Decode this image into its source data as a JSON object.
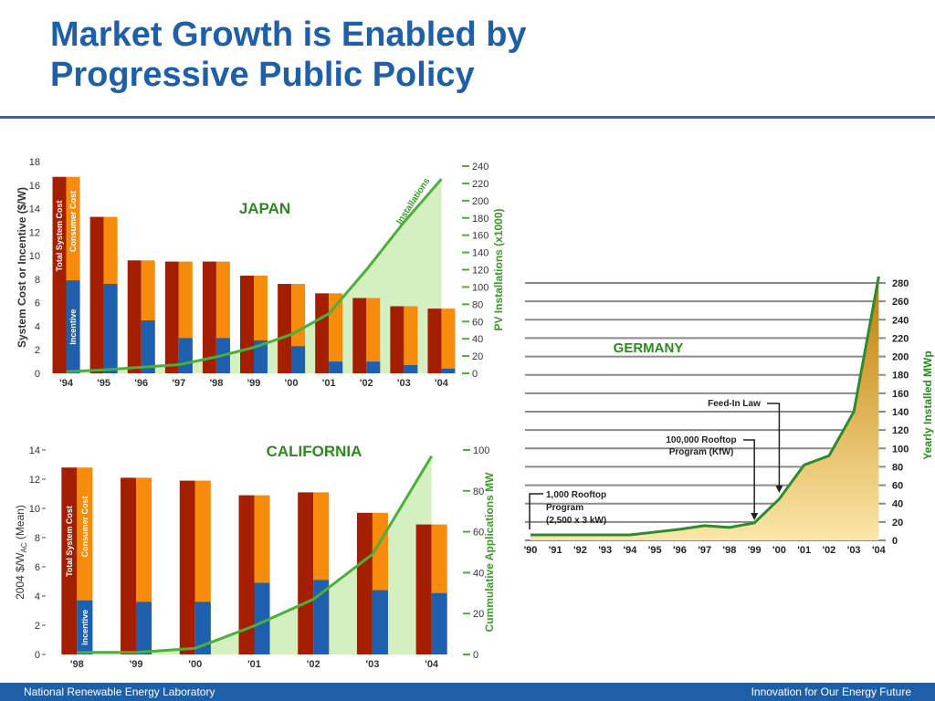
{
  "title": {
    "line1": "Market Growth is Enabled by",
    "line2": "Progressive Public Policy"
  },
  "footer": {
    "left": "National Renewable Energy Laboratory",
    "right": "Innovation for Our Energy Future"
  },
  "colors": {
    "title_blue": "#1f5fa8",
    "system_cost": "#a31f00",
    "consumer_cost": "#f78c0c",
    "incentive": "#1e5fae",
    "installations_line": "#4caf3a",
    "installations_fill": "#d4f0c0",
    "germany_line": "#2e8a2e",
    "germany_fill_top": "#c07c00",
    "germany_fill_bottom": "#fbe7a8"
  },
  "chart_data": [
    {
      "type": "bar",
      "title": "JAPAN",
      "ylabel": "System Cost or Incentive ($/W)",
      "y2label": "PV Installations (x1000)",
      "ylim": [
        0,
        18
      ],
      "y2lim": [
        0,
        240
      ],
      "yticks": [
        "0",
        "2",
        "4",
        "6",
        "8",
        "10",
        "12",
        "14",
        "16",
        "18"
      ],
      "y2ticks": [
        "0",
        "20",
        "40",
        "60",
        "80",
        "100",
        "120",
        "140",
        "160",
        "180",
        "200",
        "220",
        "240"
      ],
      "categories": [
        "'94",
        "'95",
        "'96",
        "'97",
        "'98",
        "'99",
        "'00",
        "'01",
        "'02",
        "'03",
        "'04"
      ],
      "bar_labels": {
        "total": "Total System Cost",
        "consumer": "Consumer Cost",
        "incentive": "Incentive"
      },
      "series": [
        {
          "name": "Total System Cost",
          "values": [
            16.7,
            13.3,
            9.6,
            9.5,
            9.5,
            8.3,
            7.6,
            6.8,
            6.4,
            5.7,
            5.5
          ]
        },
        {
          "name": "Incentive",
          "values": [
            7.9,
            7.6,
            4.5,
            3.0,
            3.0,
            2.8,
            2.3,
            1.0,
            1.0,
            0.7,
            0.4
          ]
        },
        {
          "name": "Installations",
          "values": [
            2,
            4,
            7,
            10,
            19,
            30,
            45,
            69,
            120,
            175,
            225
          ]
        }
      ],
      "line_label": "Installations"
    },
    {
      "type": "bar",
      "title": "CALIFORNIA",
      "ylabel_main": "2004 $/W",
      "ylabel_sub": "AC",
      "ylabel_suffix": " (Mean)",
      "y2label": "Cummulative Applications MW",
      "ylim": [
        0,
        14
      ],
      "y2lim": [
        0,
        100
      ],
      "yticks": [
        "0",
        "2",
        "4",
        "6",
        "8",
        "10",
        "12",
        "14"
      ],
      "y2ticks": [
        "0",
        "20",
        "40",
        "60",
        "80",
        "100"
      ],
      "categories": [
        "'98",
        "'99",
        "'00",
        "'01",
        "'02",
        "'03",
        "'04"
      ],
      "bar_labels": {
        "total": "Total System Cost",
        "consumer": "Consumer Cost",
        "incentive": "Incentive"
      },
      "series": [
        {
          "name": "Total System Cost",
          "values": [
            12.8,
            12.1,
            11.9,
            10.9,
            11.1,
            9.7,
            8.9
          ]
        },
        {
          "name": "Incentive",
          "values": [
            3.7,
            3.6,
            3.6,
            4.9,
            5.1,
            4.4,
            4.2
          ]
        },
        {
          "name": "Cummulative Applications MW",
          "values": [
            1,
            1,
            3,
            14,
            27,
            49,
            97
          ]
        }
      ]
    },
    {
      "type": "area",
      "title": "GERMANY",
      "ylabel": "Yearly Installed MWp",
      "ylim": [
        0,
        280
      ],
      "yticks": [
        "0",
        "20",
        "40",
        "60",
        "80",
        "100",
        "120",
        "140",
        "160",
        "180",
        "200",
        "220",
        "240",
        "260",
        "280"
      ],
      "categories": [
        "'90",
        "'91",
        "'92",
        "'93",
        "'94",
        "'95",
        "'96",
        "'97",
        "'98",
        "'99",
        "'00",
        "'01",
        "'02",
        "'03",
        "'04"
      ],
      "series": [
        {
          "name": "Yearly Installed MWp",
          "values": [
            6,
            6,
            6,
            6,
            6,
            9,
            12,
            16,
            14,
            19,
            45,
            82,
            92,
            140,
            287
          ]
        }
      ],
      "annotations": [
        {
          "lines": [
            "1,000 Rooftop",
            "Program",
            "(2,500 x 3 kW)"
          ],
          "year_index": 0
        },
        {
          "lines": [
            "100,000 Rooftop",
            "Program (KfW)"
          ],
          "year_index": 9
        },
        {
          "lines": [
            "Feed-In Law"
          ],
          "year_index": 10
        }
      ]
    }
  ]
}
